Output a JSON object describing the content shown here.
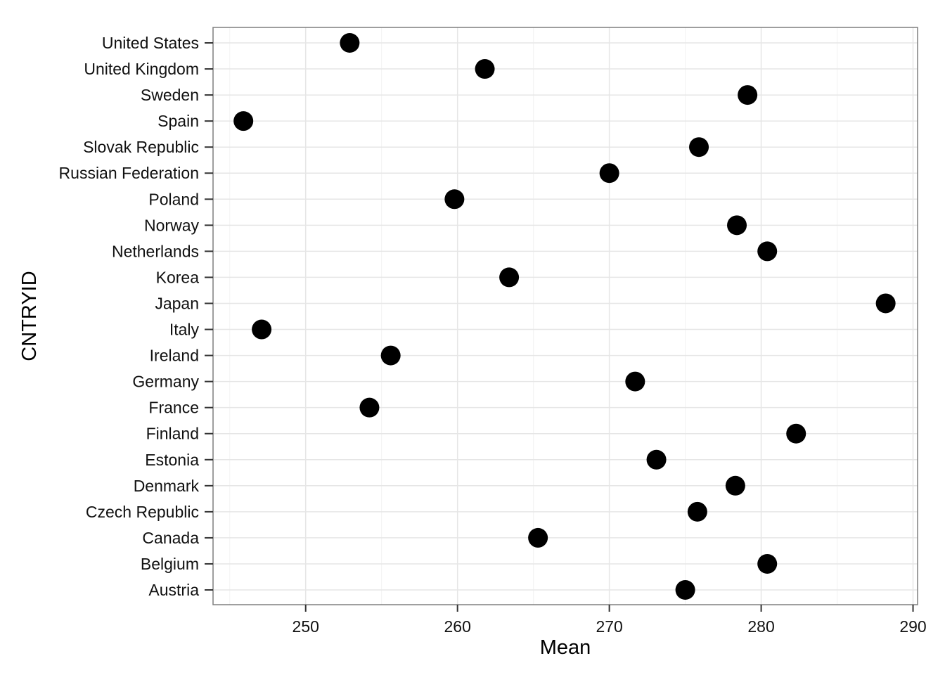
{
  "chart_data": {
    "type": "scatter",
    "xlabel": "Mean",
    "ylabel": "CNTRYID",
    "xlim": [
      243.9,
      290.3
    ],
    "x_ticks": [
      250,
      260,
      270,
      280,
      290
    ],
    "x_tick_labels": [
      "250",
      "260",
      "270",
      "280",
      "290"
    ],
    "grid": true,
    "categories": [
      "Austria",
      "Belgium",
      "Canada",
      "Czech Republic",
      "Denmark",
      "Estonia",
      "Finland",
      "France",
      "Germany",
      "Ireland",
      "Italy",
      "Japan",
      "Korea",
      "Netherlands",
      "Norway",
      "Poland",
      "Russian Federation",
      "Slovak Republic",
      "Spain",
      "Sweden",
      "United Kingdom",
      "United States"
    ],
    "values": [
      275.0,
      280.4,
      265.3,
      275.8,
      278.3,
      273.1,
      282.3,
      254.2,
      271.7,
      255.6,
      247.1,
      288.2,
      263.4,
      280.4,
      278.4,
      259.8,
      270.0,
      275.9,
      245.9,
      279.1,
      261.8,
      252.9
    ],
    "colors": {
      "point": "#000000",
      "panel_border": "#7f7f7f",
      "grid_major": "#e6e6e6",
      "grid_minor": "#f2f2f2",
      "tick": "#333333"
    }
  }
}
